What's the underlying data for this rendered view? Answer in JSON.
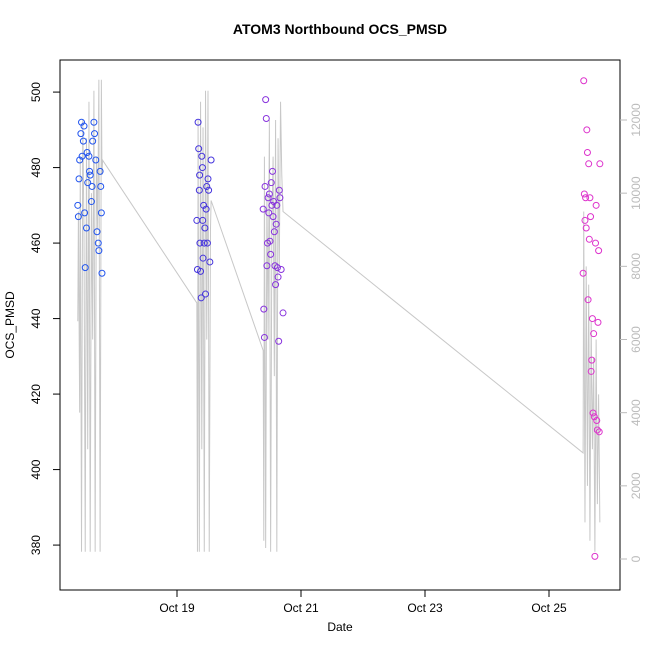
{
  "chart_data": {
    "type": "scatter",
    "title": "ATOM3 Northbound OCS_PMSD",
    "x_label": "Date",
    "y_label": "OCS_PMSD",
    "xlim": [
      17.113,
      26.145
    ],
    "xticks": [
      {
        "value": 19,
        "label": "Oct 19"
      },
      {
        "value": 21,
        "label": "Oct 21"
      },
      {
        "value": 23,
        "label": "Oct 23"
      },
      {
        "value": 25,
        "label": "Oct 25"
      }
    ],
    "ylim": [
      368.1,
      508.5
    ],
    "yticks": [
      380,
      400,
      420,
      440,
      460,
      480,
      500
    ],
    "y2lim": [
      -847,
      13640
    ],
    "y2ticks": [
      0,
      2000,
      4000,
      6000,
      8000,
      10000,
      12000
    ],
    "y2_color": "#bbbbbb",
    "series": [
      {
        "type": "scatter",
        "color": "#2255ee",
        "x": [
          17.4,
          17.41,
          17.42,
          17.43,
          17.45,
          17.46,
          17.47,
          17.49,
          17.5,
          17.51,
          17.52,
          17.54,
          17.55,
          17.56,
          17.58,
          17.59,
          17.6,
          17.62,
          17.63,
          17.64,
          17.66,
          17.67,
          17.69,
          17.71,
          17.73,
          17.74,
          17.76,
          17.77,
          17.78,
          17.79
        ],
        "values": [
          470,
          467,
          477,
          482,
          489,
          492,
          483,
          487,
          491,
          468,
          453.5,
          464,
          484,
          476,
          483,
          479,
          478,
          471,
          475,
          487,
          492,
          489,
          482,
          463,
          460,
          458,
          479,
          475,
          468,
          452
        ]
      },
      {
        "type": "scatter",
        "color": "#4433dd",
        "x": [
          19.32,
          19.33,
          19.34,
          19.35,
          19.36,
          19.365,
          19.37,
          19.38,
          19.39,
          19.4,
          19.41,
          19.415,
          19.42,
          19.43,
          19.44,
          19.45,
          19.46,
          19.47,
          19.48,
          19.49,
          19.5,
          19.51,
          19.53,
          19.55
        ],
        "values": [
          466,
          453,
          492,
          485,
          474,
          478,
          460,
          452.5,
          445.5,
          483,
          480,
          466,
          456,
          470,
          460,
          464,
          446.5,
          469,
          475,
          460,
          477,
          474,
          455,
          482
        ]
      },
      {
        "type": "scatter",
        "color": "#8833dd",
        "x": [
          20.39,
          20.4,
          20.41,
          20.42,
          20.43,
          20.44,
          20.45,
          20.46,
          20.47,
          20.48,
          20.49,
          20.5,
          20.51,
          20.52,
          20.53,
          20.54,
          20.55,
          20.56,
          20.57,
          20.58,
          20.59,
          20.6,
          20.61,
          20.62,
          20.63,
          20.64,
          20.65,
          20.66,
          20.68,
          20.71
        ],
        "values": [
          469,
          442.5,
          435,
          475,
          498,
          493,
          454,
          460,
          472,
          468,
          473,
          460.5,
          457,
          476,
          470,
          479,
          467,
          471,
          463,
          454,
          449,
          465,
          470,
          453.5,
          451,
          434,
          474,
          472,
          453,
          441.5
        ]
      },
      {
        "type": "scatter",
        "color": "#dd33cc",
        "x": [
          25.55,
          25.56,
          25.57,
          25.58,
          25.59,
          25.6,
          25.61,
          25.62,
          25.63,
          25.64,
          25.65,
          25.66,
          25.67,
          25.68,
          25.69,
          25.7,
          25.71,
          25.72,
          25.73,
          25.74,
          25.75,
          25.76,
          25.77,
          25.78,
          25.79,
          25.8,
          25.81,
          25.82
        ],
        "values": [
          452,
          503,
          473,
          466,
          472,
          464,
          490,
          484,
          445,
          481,
          461,
          472,
          467,
          426,
          429,
          440,
          415,
          436,
          414,
          377,
          460,
          470,
          413,
          410.5,
          439,
          458,
          410,
          481
        ]
      },
      {
        "type": "line",
        "axis": "y2",
        "color": "#c8c8c8",
        "x": [
          17.4,
          17.41,
          17.43,
          17.44,
          17.46,
          17.48,
          17.5,
          17.52,
          17.54,
          17.56,
          17.58,
          17.6,
          17.62,
          17.64,
          17.66,
          17.68,
          17.7,
          17.72,
          17.74,
          17.76,
          17.78,
          17.79,
          17.8,
          19.32,
          19.33,
          19.34,
          19.36,
          19.38,
          19.4,
          19.42,
          19.44,
          19.46,
          19.48,
          19.5,
          19.52,
          19.54,
          19.55,
          20.39,
          20.4,
          20.41,
          20.43,
          20.45,
          20.47,
          20.49,
          20.51,
          20.53,
          20.55,
          20.57,
          20.59,
          20.61,
          20.63,
          20.65,
          20.67,
          20.69,
          20.71,
          25.55,
          25.56,
          25.58,
          25.6,
          25.62,
          25.64,
          25.66,
          25.68,
          25.7,
          25.72,
          25.74,
          25.76,
          25.78,
          25.8,
          25.82
        ],
        "values": [
          6500,
          9500,
          4000,
          11000,
          200,
          12000,
          9000,
          200,
          11500,
          3000,
          12500,
          200,
          10000,
          6000,
          12800,
          200,
          11000,
          9000,
          13100,
          200,
          13100,
          10500,
          10900,
          7000,
          200,
          12000,
          200,
          12500,
          3000,
          11800,
          200,
          12800,
          6000,
          12800,
          200,
          9000,
          9800,
          5700,
          500,
          11000,
          300,
          10000,
          6000,
          12000,
          200,
          9000,
          11000,
          5000,
          12000,
          200,
          11500,
          8000,
          12500,
          10500,
          9500,
          2900,
          9500,
          1000,
          8000,
          2000,
          7500,
          500,
          6500,
          3000,
          5500,
          200,
          6000,
          1500,
          4500,
          1000
        ]
      }
    ]
  }
}
